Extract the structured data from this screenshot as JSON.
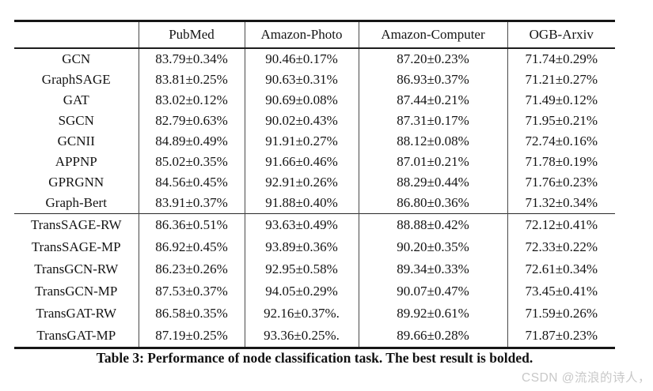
{
  "table": {
    "columns": [
      "",
      "PubMed",
      "Amazon-Photo",
      "Amazon-Computer",
      "OGB-Arxiv"
    ],
    "group1": [
      {
        "model": "GCN",
        "values": [
          "83.79±0.34%",
          "90.46±0.17%",
          "87.20±0.23%",
          "71.74±0.29%"
        ],
        "bold": [
          false,
          false,
          false,
          false
        ]
      },
      {
        "model": "GraphSAGE",
        "values": [
          "83.81±0.25%",
          "90.63±0.31%",
          "86.93±0.37%",
          "71.21±0.27%"
        ],
        "bold": [
          false,
          false,
          false,
          false
        ]
      },
      {
        "model": "GAT",
        "values": [
          "83.02±0.12%",
          "90.69±0.08%",
          "87.44±0.21%",
          "71.49±0.12%"
        ],
        "bold": [
          false,
          false,
          false,
          false
        ]
      },
      {
        "model": "SGCN",
        "values": [
          "82.79±0.63%",
          "90.02±0.43%",
          "87.31±0.17%",
          "71.95±0.21%"
        ],
        "bold": [
          false,
          false,
          false,
          false
        ]
      },
      {
        "model": "GCNII",
        "values": [
          "84.89±0.49%",
          "91.91±0.27%",
          "88.12±0.08%",
          "72.74±0.16%"
        ],
        "bold": [
          false,
          false,
          false,
          false
        ]
      },
      {
        "model": "APPNP",
        "values": [
          "85.02±0.35%",
          "91.66±0.46%",
          "87.01±0.21%",
          "71.78±0.19%"
        ],
        "bold": [
          false,
          false,
          false,
          false
        ]
      },
      {
        "model": "GPRGNN",
        "values": [
          "84.56±0.45%",
          "92.91±0.26%",
          "88.29±0.44%",
          "71.76±0.23%"
        ],
        "bold": [
          false,
          false,
          false,
          false
        ]
      },
      {
        "model": "Graph-Bert",
        "values": [
          "83.91±0.37%",
          "91.88±0.40%",
          "86.80±0.36%",
          "71.32±0.34%"
        ],
        "bold": [
          false,
          false,
          false,
          false
        ]
      }
    ],
    "group2": [
      {
        "model": "TransSAGE-RW",
        "values": [
          "86.36±0.51%",
          "93.63±0.49%",
          "88.88±0.42%",
          "72.12±0.41%"
        ],
        "bold": [
          false,
          false,
          false,
          false
        ]
      },
      {
        "model": "TransSAGE-MP",
        "values": [
          "86.92±0.45%",
          "93.89±0.36%",
          "90.20±0.35%",
          "72.33±0.22%"
        ],
        "bold": [
          false,
          false,
          true,
          false
        ]
      },
      {
        "model": "TransGCN-RW",
        "values": [
          "86.23±0.26%",
          "92.95±0.58%",
          "89.34±0.33%",
          "72.61±0.34%"
        ],
        "bold": [
          false,
          false,
          false,
          false
        ]
      },
      {
        "model": "TransGCN-MP",
        "values": [
          "87.53±0.37%",
          "94.05±0.29%",
          "90.07±0.47%",
          "73.45±0.41%"
        ],
        "bold": [
          true,
          true,
          false,
          true
        ]
      },
      {
        "model": "TransGAT-RW",
        "values": [
          "86.58±0.35%",
          "92.16±0.37%.",
          "89.92±0.61%",
          "71.59±0.26%"
        ],
        "bold": [
          false,
          false,
          false,
          false
        ]
      },
      {
        "model": "TransGAT-MP",
        "values": [
          "87.19±0.25%",
          "93.36±0.25%.",
          "89.66±0.28%",
          "71.87±0.23%"
        ],
        "bold": [
          false,
          false,
          false,
          false
        ]
      }
    ]
  },
  "caption": "Table 3: Performance of node classification task. The best result is bolded.",
  "watermark": "CSDN @流浪的诗人，",
  "colors": {
    "rule": "#161616",
    "text": "#141414",
    "watermark": "#c8c8c8",
    "background": "#ffffff"
  }
}
